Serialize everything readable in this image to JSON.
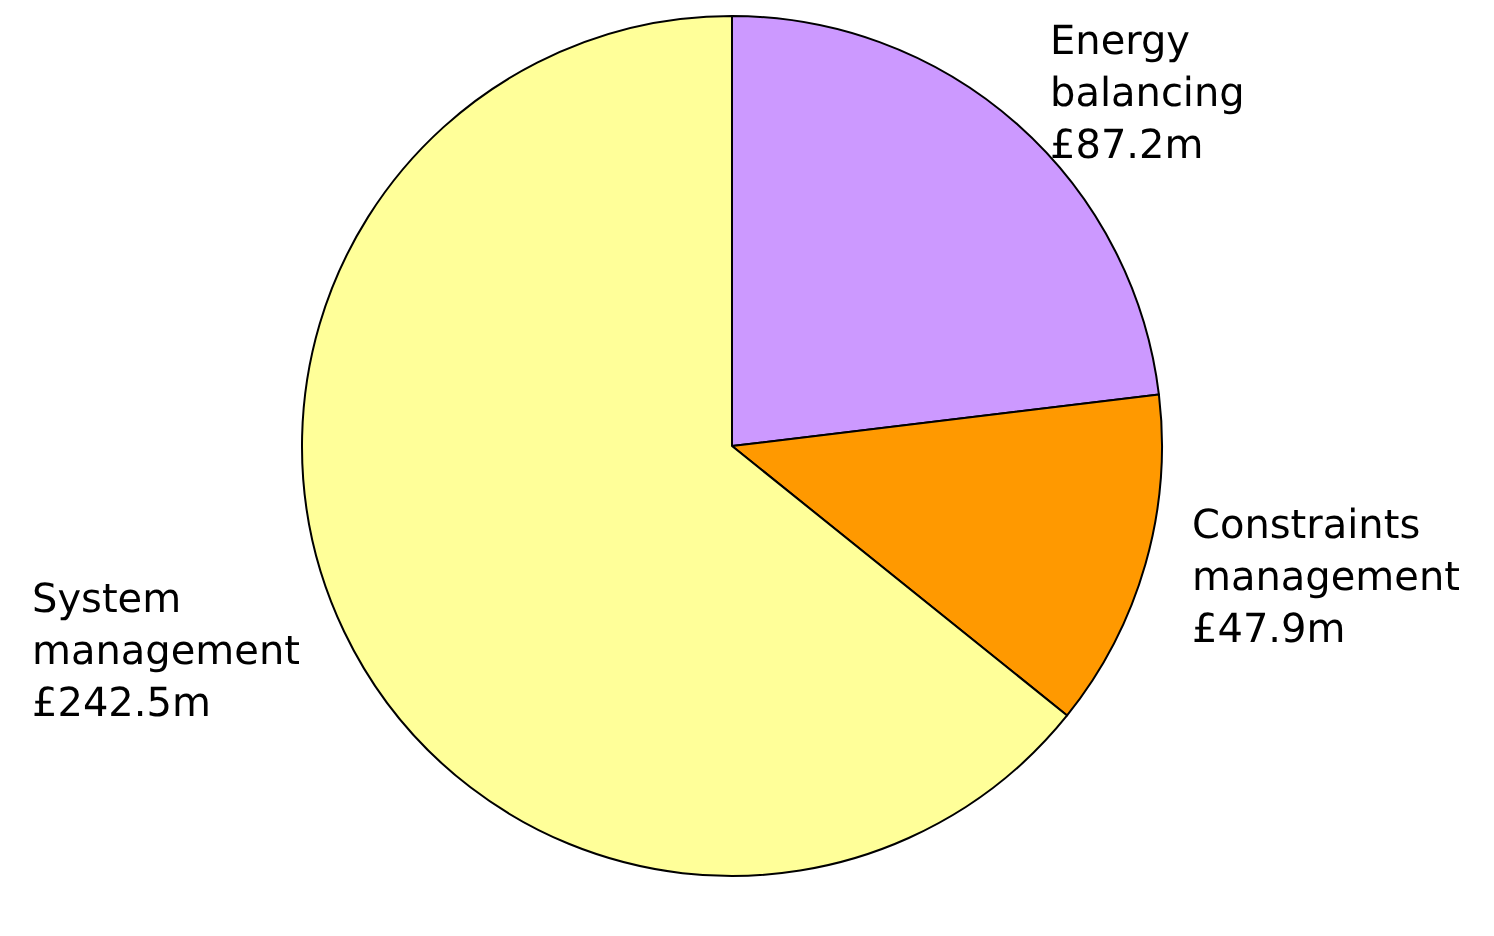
{
  "chart_data": {
    "type": "pie",
    "categories": [
      "Energy balancing",
      "Constraints management",
      "System management"
    ],
    "values": [
      87.2,
      47.9,
      242.5
    ],
    "value_labels": [
      "£87.2m",
      "£47.9m",
      "£242.5m"
    ],
    "colors": [
      "#cc99ff",
      "#ff9900",
      "#ffff99"
    ],
    "legend": false
  }
}
